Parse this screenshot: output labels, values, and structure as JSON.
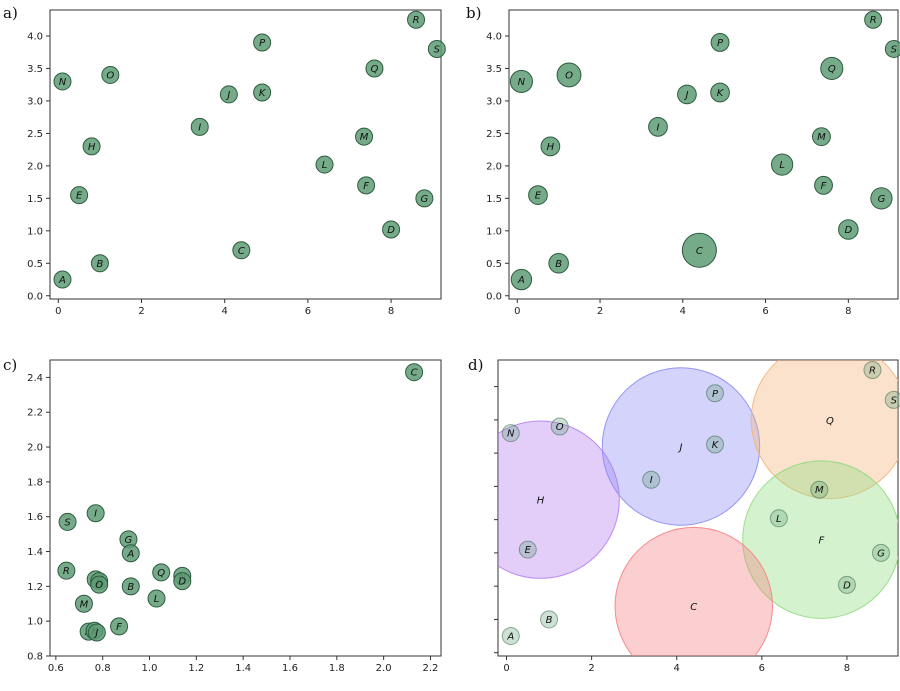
{
  "colors": {
    "point_fill": "#5e9c75",
    "point_stroke": "#2e5b3e",
    "axes": "#333333",
    "circle_H": "#b57ff0",
    "circle_J": "#8c8cf5",
    "circle_Q": "#f5b37a",
    "circle_F": "#8fdc7f",
    "circle_C": "#f58080"
  },
  "chart_data": [
    {
      "panel_label": "a)",
      "type": "scatter",
      "xlim": [
        -0.2,
        9.2
      ],
      "ylim": [
        -0.05,
        4.4
      ],
      "xticks": [
        "0",
        "2",
        "4",
        "6",
        "8"
      ],
      "yticks": [
        "0.0",
        "0.5",
        "1.0",
        "1.5",
        "2.0",
        "2.5",
        "3.0",
        "3.5",
        "4.0"
      ],
      "xtick_values": [
        0,
        2,
        4,
        6,
        8
      ],
      "ytick_values": [
        0,
        0.5,
        1,
        1.5,
        2,
        2.5,
        3,
        3.5,
        4
      ],
      "points": [
        {
          "label": "A",
          "x": 0.1,
          "y": 0.25,
          "size": 1
        },
        {
          "label": "B",
          "x": 1.0,
          "y": 0.5,
          "size": 1
        },
        {
          "label": "C",
          "x": 4.4,
          "y": 0.7,
          "size": 1
        },
        {
          "label": "D",
          "x": 8.0,
          "y": 1.02,
          "size": 1
        },
        {
          "label": "E",
          "x": 0.5,
          "y": 1.55,
          "size": 1
        },
        {
          "label": "F",
          "x": 7.4,
          "y": 1.7,
          "size": 1
        },
        {
          "label": "G",
          "x": 8.8,
          "y": 1.5,
          "size": 1
        },
        {
          "label": "H",
          "x": 0.8,
          "y": 2.3,
          "size": 1
        },
        {
          "label": "I",
          "x": 3.4,
          "y": 2.6,
          "size": 1
        },
        {
          "label": "J",
          "x": 4.1,
          "y": 3.1,
          "size": 1
        },
        {
          "label": "K",
          "x": 4.9,
          "y": 3.13,
          "size": 1
        },
        {
          "label": "L",
          "x": 6.4,
          "y": 2.02,
          "size": 1
        },
        {
          "label": "M",
          "x": 7.35,
          "y": 2.45,
          "size": 1
        },
        {
          "label": "N",
          "x": 0.1,
          "y": 3.3,
          "size": 1
        },
        {
          "label": "O",
          "x": 1.25,
          "y": 3.4,
          "size": 1
        },
        {
          "label": "P",
          "x": 4.9,
          "y": 3.9,
          "size": 1
        },
        {
          "label": "Q",
          "x": 7.6,
          "y": 3.5,
          "size": 1
        },
        {
          "label": "R",
          "x": 8.6,
          "y": 4.25,
          "size": 1
        },
        {
          "label": "S",
          "x": 9.1,
          "y": 3.8,
          "size": 1
        }
      ]
    },
    {
      "panel_label": "b)",
      "type": "scatter",
      "xlim": [
        -0.2,
        9.2
      ],
      "ylim": [
        -0.05,
        4.4
      ],
      "xticks": [
        "0",
        "2",
        "4",
        "6",
        "8"
      ],
      "yticks": [
        "0.0",
        "0.5",
        "1.0",
        "1.5",
        "2.0",
        "2.5",
        "3.0",
        "3.5",
        "4.0"
      ],
      "xtick_values": [
        0,
        2,
        4,
        6,
        8
      ],
      "ytick_values": [
        0,
        0.5,
        1,
        1.5,
        2,
        2.5,
        3,
        3.5,
        4
      ],
      "points": [
        {
          "label": "A",
          "x": 0.1,
          "y": 0.25,
          "size": 1.2
        },
        {
          "label": "B",
          "x": 1.0,
          "y": 0.5,
          "size": 1.15
        },
        {
          "label": "C",
          "x": 4.4,
          "y": 0.7,
          "size": 2.0
        },
        {
          "label": "D",
          "x": 8.0,
          "y": 1.02,
          "size": 1.15
        },
        {
          "label": "E",
          "x": 0.5,
          "y": 1.55,
          "size": 1.1
        },
        {
          "label": "F",
          "x": 7.4,
          "y": 1.7,
          "size": 1.05
        },
        {
          "label": "G",
          "x": 8.8,
          "y": 1.5,
          "size": 1.25
        },
        {
          "label": "H",
          "x": 0.8,
          "y": 2.3,
          "size": 1.1
        },
        {
          "label": "I",
          "x": 3.4,
          "y": 2.6,
          "size": 1.1
        },
        {
          "label": "J",
          "x": 4.1,
          "y": 3.1,
          "size": 1.1
        },
        {
          "label": "K",
          "x": 4.9,
          "y": 3.13,
          "size": 1.1
        },
        {
          "label": "L",
          "x": 6.4,
          "y": 2.02,
          "size": 1.25
        },
        {
          "label": "M",
          "x": 7.35,
          "y": 2.45,
          "size": 1.05
        },
        {
          "label": "N",
          "x": 0.1,
          "y": 3.3,
          "size": 1.3
        },
        {
          "label": "O",
          "x": 1.25,
          "y": 3.4,
          "size": 1.4
        },
        {
          "label": "P",
          "x": 4.9,
          "y": 3.9,
          "size": 1.05
        },
        {
          "label": "Q",
          "x": 7.6,
          "y": 3.5,
          "size": 1.3
        },
        {
          "label": "R",
          "x": 8.6,
          "y": 4.25,
          "size": 1.0
        },
        {
          "label": "S",
          "x": 9.1,
          "y": 3.8,
          "size": 1.0
        }
      ]
    },
    {
      "panel_label": "c)",
      "type": "scatter",
      "xlim": [
        0.575,
        2.245
      ],
      "ylim": [
        0.8,
        2.5
      ],
      "xticks": [
        "0.6",
        "0.8",
        "1.0",
        "1.2",
        "1.4",
        "1.6",
        "1.8",
        "2.0",
        "2.2"
      ],
      "yticks": [
        "0.8",
        "1.0",
        "1.2",
        "1.4",
        "1.6",
        "1.8",
        "2.0",
        "2.2",
        "2.4"
      ],
      "xtick_values": [
        0.6,
        0.8,
        1.0,
        1.2,
        1.4,
        1.6,
        1.8,
        2.0,
        2.2
      ],
      "ytick_values": [
        0.8,
        1.0,
        1.2,
        1.4,
        1.6,
        1.8,
        2.0,
        2.2,
        2.4
      ],
      "points": [
        {
          "label": "C",
          "x": 2.13,
          "y": 2.43,
          "size": 1
        },
        {
          "label": "S",
          "x": 0.65,
          "y": 1.57,
          "size": 1
        },
        {
          "label": "I",
          "x": 0.77,
          "y": 1.62,
          "size": 1
        },
        {
          "label": "G",
          "x": 0.91,
          "y": 1.47,
          "size": 1
        },
        {
          "label": "A",
          "x": 0.92,
          "y": 1.39,
          "size": 1
        },
        {
          "label": "R",
          "x": 0.645,
          "y": 1.29,
          "size": 1
        },
        {
          "label": "P",
          "x": 0.77,
          "y": 1.24,
          "size": 1
        },
        {
          "label": "E",
          "x": 0.785,
          "y": 1.23,
          "size": 1
        },
        {
          "label": "O",
          "x": 0.785,
          "y": 1.21,
          "size": 1
        },
        {
          "label": "B",
          "x": 0.92,
          "y": 1.2,
          "size": 1
        },
        {
          "label": "Q",
          "x": 1.05,
          "y": 1.28,
          "size": 1
        },
        {
          "label": "N",
          "x": 1.14,
          "y": 1.26,
          "size": 1
        },
        {
          "label": "D",
          "x": 1.14,
          "y": 1.23,
          "size": 1
        },
        {
          "label": "L",
          "x": 1.03,
          "y": 1.13,
          "size": 1
        },
        {
          "label": "M",
          "x": 0.72,
          "y": 1.1,
          "size": 1
        },
        {
          "label": "H",
          "x": 0.74,
          "y": 0.94,
          "size": 1
        },
        {
          "label": "K",
          "x": 0.765,
          "y": 0.945,
          "size": 1
        },
        {
          "label": "J",
          "x": 0.775,
          "y": 0.935,
          "size": 1
        },
        {
          "label": "F",
          "x": 0.87,
          "y": 0.97,
          "size": 1
        }
      ]
    },
    {
      "panel_label": "d)",
      "type": "scatter",
      "xlim": [
        -0.2,
        9.2
      ],
      "ylim": [
        -0.05,
        4.4
      ],
      "xticks": [
        "0",
        "2",
        "4",
        "6",
        "8"
      ],
      "yticks": [],
      "xtick_values": [
        0,
        2,
        4,
        6,
        8
      ],
      "ytick_values": [
        0,
        0.5,
        1,
        1.5,
        2,
        2.5,
        3,
        3.5,
        4
      ],
      "regions": [
        {
          "label": "H",
          "x": 0.8,
          "y": 2.3,
          "radius": 1.85,
          "color": "#b57ff0"
        },
        {
          "label": "J",
          "x": 4.1,
          "y": 3.1,
          "radius": 1.85,
          "color": "#8c8cf5"
        },
        {
          "label": "Q",
          "x": 7.6,
          "y": 3.5,
          "radius": 1.85,
          "color": "#f5b37a"
        },
        {
          "label": "F",
          "x": 7.4,
          "y": 1.7,
          "radius": 1.85,
          "color": "#8fdc7f"
        },
        {
          "label": "C",
          "x": 4.4,
          "y": 0.7,
          "radius": 1.85,
          "color": "#f58080"
        }
      ],
      "points": [
        {
          "label": "A",
          "x": 0.1,
          "y": 0.25,
          "size": 1
        },
        {
          "label": "B",
          "x": 1.0,
          "y": 0.5,
          "size": 1
        },
        {
          "label": "D",
          "x": 8.0,
          "y": 1.02,
          "size": 1
        },
        {
          "label": "E",
          "x": 0.5,
          "y": 1.55,
          "size": 1
        },
        {
          "label": "G",
          "x": 8.8,
          "y": 1.5,
          "size": 1
        },
        {
          "label": "I",
          "x": 3.4,
          "y": 2.6,
          "size": 1
        },
        {
          "label": "K",
          "x": 4.9,
          "y": 3.13,
          "size": 1
        },
        {
          "label": "L",
          "x": 6.4,
          "y": 2.02,
          "size": 1
        },
        {
          "label": "M",
          "x": 7.35,
          "y": 2.45,
          "size": 1
        },
        {
          "label": "N",
          "x": 0.1,
          "y": 3.3,
          "size": 1
        },
        {
          "label": "O",
          "x": 1.25,
          "y": 3.4,
          "size": 1
        },
        {
          "label": "P",
          "x": 4.9,
          "y": 3.9,
          "size": 1
        },
        {
          "label": "R",
          "x": 8.6,
          "y": 4.25,
          "size": 1
        },
        {
          "label": "S",
          "x": 9.1,
          "y": 3.8,
          "size": 1
        }
      ]
    }
  ]
}
